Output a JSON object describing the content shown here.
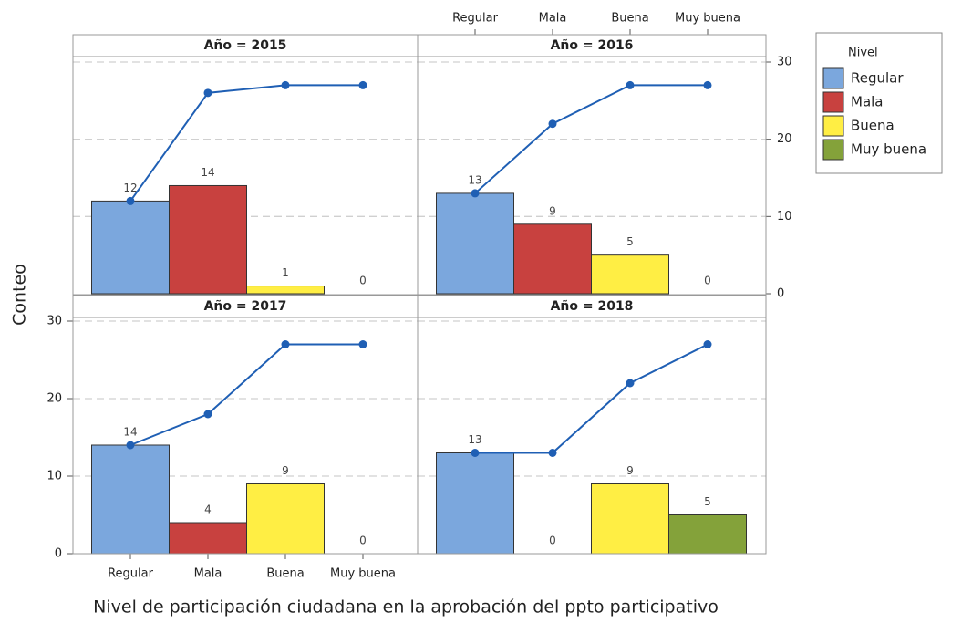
{
  "figure": {
    "xlabel": "Nivel de participación ciudadana en la aprobación del ppto participativo",
    "ylabel": "Conteo",
    "legend_title": "Nivel"
  },
  "chart_data": [
    {
      "type": "bar",
      "title": "Año = 2015",
      "categories": [
        "Regular",
        "Mala",
        "Buena",
        "Muy buena"
      ],
      "values": [
        12,
        14,
        1,
        0
      ],
      "colors": [
        "#7ba7dd",
        "#c8413f",
        "#ffee44",
        "#84a23a"
      ],
      "line": {
        "values": [
          12,
          26,
          27,
          27
        ],
        "color": "#1f5fb4"
      },
      "ylim": [
        0,
        30
      ],
      "yticks": [
        0,
        10,
        20,
        30
      ],
      "grid": true
    },
    {
      "type": "bar",
      "title": "Año = 2016",
      "categories": [
        "Regular",
        "Mala",
        "Buena",
        "Muy buena"
      ],
      "values": [
        13,
        9,
        5,
        0
      ],
      "colors": [
        "#7ba7dd",
        "#c8413f",
        "#ffee44",
        "#84a23a"
      ],
      "line": {
        "values": [
          13,
          22,
          27,
          27
        ],
        "color": "#1f5fb4"
      },
      "ylim": [
        0,
        30
      ],
      "yticks": [
        0,
        10,
        20,
        30
      ],
      "grid": true
    },
    {
      "type": "bar",
      "title": "Año = 2017",
      "categories": [
        "Regular",
        "Mala",
        "Buena",
        "Muy buena"
      ],
      "values": [
        14,
        4,
        9,
        0
      ],
      "colors": [
        "#7ba7dd",
        "#c8413f",
        "#ffee44",
        "#84a23a"
      ],
      "line": {
        "values": [
          14,
          18,
          27,
          27
        ],
        "color": "#1f5fb4"
      },
      "ylim": [
        0,
        30
      ],
      "yticks": [
        0,
        10,
        20,
        30
      ],
      "grid": true
    },
    {
      "type": "bar",
      "title": "Año = 2018",
      "categories": [
        "Regular",
        "Mala",
        "Buena",
        "Muy buena"
      ],
      "values": [
        13,
        0,
        9,
        5
      ],
      "colors": [
        "#7ba7dd",
        "#c8413f",
        "#ffee44",
        "#84a23a"
      ],
      "line": {
        "values": [
          13,
          13,
          22,
          27
        ],
        "color": "#1f5fb4"
      },
      "ylim": [
        0,
        30
      ],
      "yticks": [
        0,
        10,
        20,
        30
      ],
      "grid": true
    }
  ]
}
